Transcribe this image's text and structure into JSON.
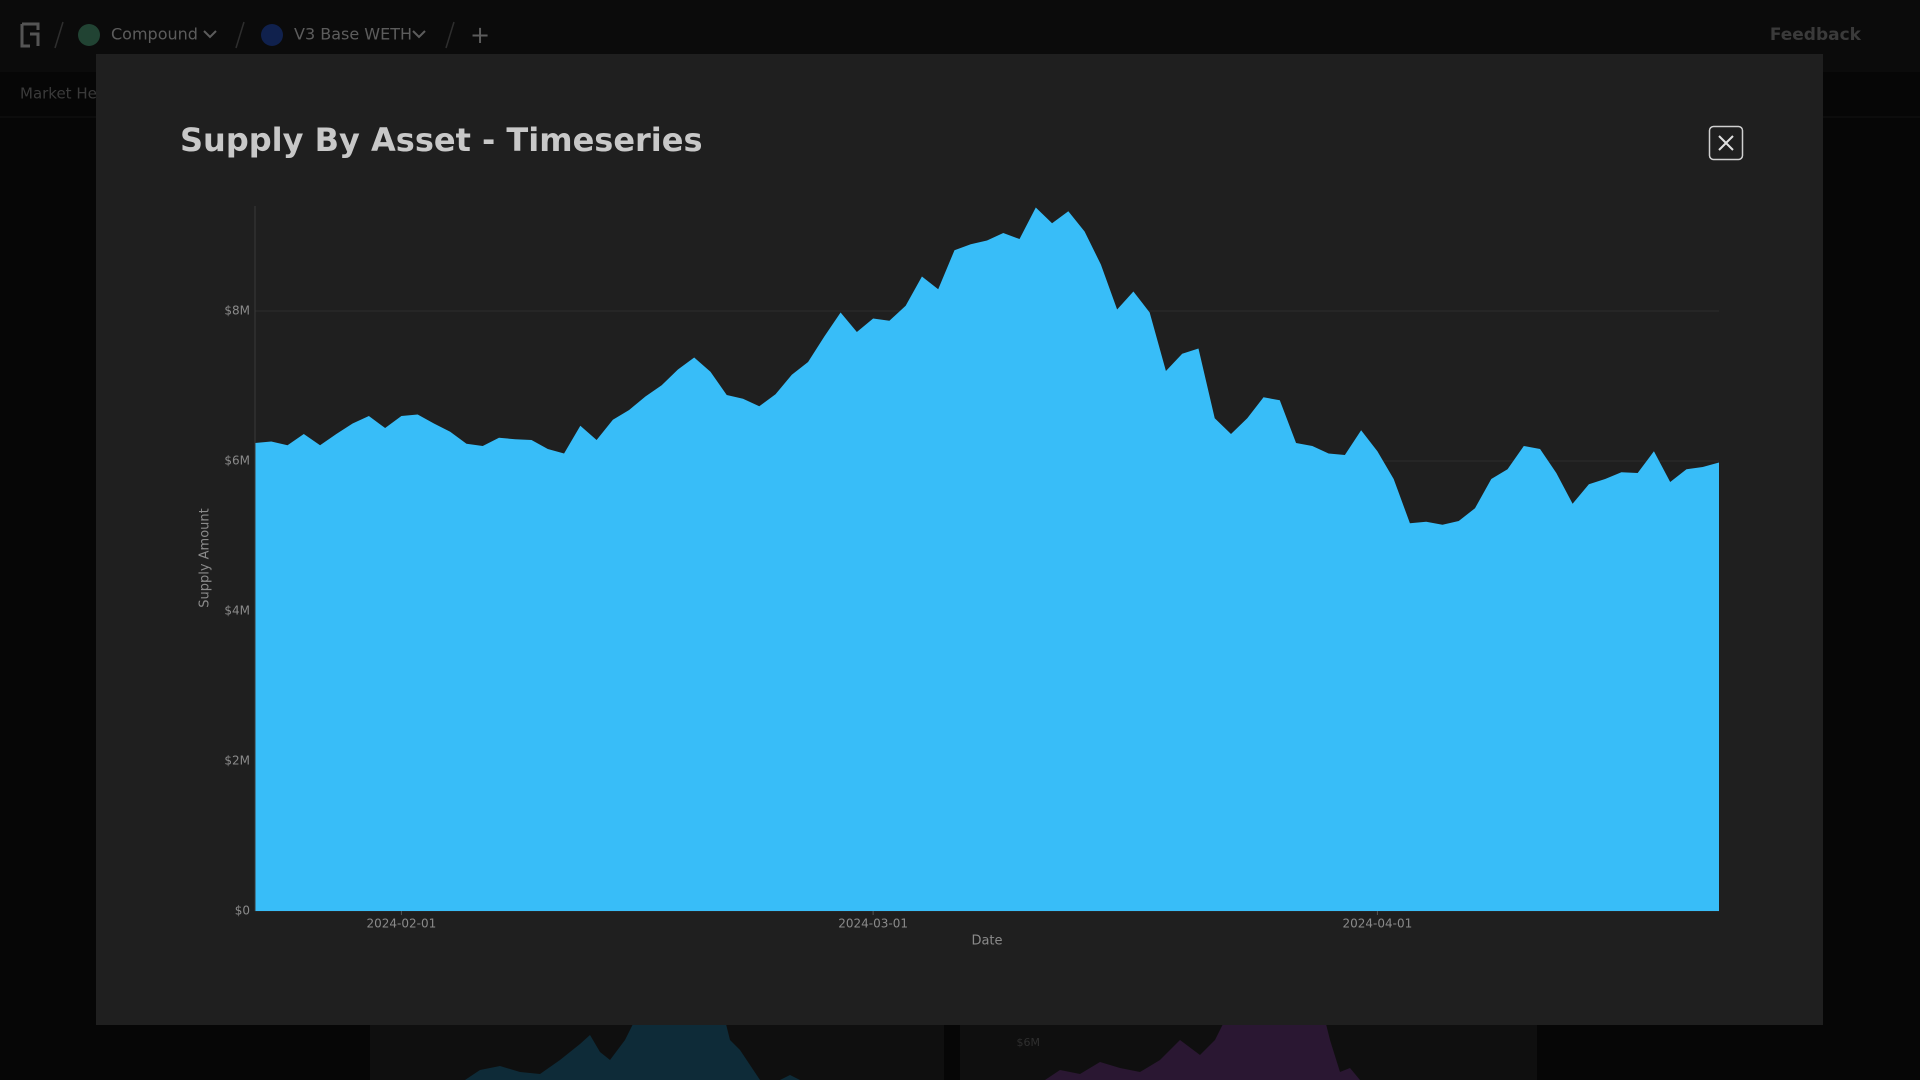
{
  "nav": {
    "project": "Compound",
    "market": "V3 Base WETH",
    "add": "+",
    "feedback": "Feedback",
    "tab": "Market Hea"
  },
  "background": {
    "label": "$6M"
  },
  "chart_data": {
    "type": "area",
    "title": "Supply By Asset - Timeseries",
    "x_label": "Date",
    "y_label": "Supply Amount",
    "color": "#38bdf8",
    "grid": true,
    "x": [
      "2024-01-23",
      "2024-01-24",
      "2024-01-25",
      "2024-01-26",
      "2024-01-27",
      "2024-01-28",
      "2024-01-29",
      "2024-01-30",
      "2024-01-31",
      "2024-02-01",
      "2024-02-02",
      "2024-02-03",
      "2024-02-04",
      "2024-02-05",
      "2024-02-06",
      "2024-02-07",
      "2024-02-08",
      "2024-02-09",
      "2024-02-10",
      "2024-02-11",
      "2024-02-12",
      "2024-02-13",
      "2024-02-14",
      "2024-02-15",
      "2024-02-16",
      "2024-02-17",
      "2024-02-18",
      "2024-02-19",
      "2024-02-20",
      "2024-02-21",
      "2024-02-22",
      "2024-02-23",
      "2024-02-24",
      "2024-02-25",
      "2024-02-26",
      "2024-02-27",
      "2024-02-28",
      "2024-02-29",
      "2024-03-01",
      "2024-03-02",
      "2024-03-03",
      "2024-03-04",
      "2024-03-05",
      "2024-03-06",
      "2024-03-07",
      "2024-03-08",
      "2024-03-09",
      "2024-03-10",
      "2024-03-11",
      "2024-03-12",
      "2024-03-13",
      "2024-03-14",
      "2024-03-15",
      "2024-03-16",
      "2024-03-17",
      "2024-03-18",
      "2024-03-19",
      "2024-03-20",
      "2024-03-21",
      "2024-03-22",
      "2024-03-23",
      "2024-03-24",
      "2024-03-25",
      "2024-03-26",
      "2024-03-27",
      "2024-03-28",
      "2024-03-29",
      "2024-03-30",
      "2024-03-31",
      "2024-04-01",
      "2024-04-02",
      "2024-04-03",
      "2024-04-04",
      "2024-04-05",
      "2024-04-06",
      "2024-04-07",
      "2024-04-08",
      "2024-04-09",
      "2024-04-10",
      "2024-04-11",
      "2024-04-12",
      "2024-04-13",
      "2024-04-14",
      "2024-04-15",
      "2024-04-16",
      "2024-04-17",
      "2024-04-18",
      "2024-04-19",
      "2024-04-20",
      "2024-04-21",
      "2024-04-22"
    ],
    "values": [
      6240000,
      6260000,
      6210000,
      6360000,
      6210000,
      6360000,
      6500000,
      6600000,
      6440000,
      6600000,
      6620000,
      6500000,
      6390000,
      6230000,
      6200000,
      6310000,
      6290000,
      6280000,
      6160000,
      6100000,
      6470000,
      6280000,
      6550000,
      6680000,
      6860000,
      7010000,
      7220000,
      7380000,
      7190000,
      6880000,
      6830000,
      6730000,
      6890000,
      7150000,
      7320000,
      7660000,
      7980000,
      7720000,
      7900000,
      7870000,
      8070000,
      8460000,
      8290000,
      8810000,
      8890000,
      8940000,
      9040000,
      8960000,
      9380000,
      9170000,
      9330000,
      9060000,
      8620000,
      8020000,
      8260000,
      7980000,
      7200000,
      7430000,
      7500000,
      6570000,
      6360000,
      6570000,
      6850000,
      6810000,
      6240000,
      6200000,
      6100000,
      6080000,
      6410000,
      6130000,
      5760000,
      5170000,
      5190000,
      5150000,
      5200000,
      5370000,
      5760000,
      5890000,
      6200000,
      6160000,
      5840000,
      5430000,
      5690000,
      5760000,
      5850000,
      5840000,
      6130000,
      5720000,
      5890000,
      5920000,
      5980000
    ],
    "xlim": [
      "2024-01-23",
      "2024-04-22"
    ],
    "xticks": [
      "2024-02-01",
      "2024-03-01",
      "2024-04-01"
    ],
    "ylim": [
      0,
      9400000
    ],
    "yticks": [
      {
        "value": 0,
        "label": "$0"
      },
      {
        "value": 2000000,
        "label": "$2M"
      },
      {
        "value": 4000000,
        "label": "$4M"
      },
      {
        "value": 6000000,
        "label": "$6M"
      },
      {
        "value": 8000000,
        "label": "$8M"
      }
    ]
  }
}
